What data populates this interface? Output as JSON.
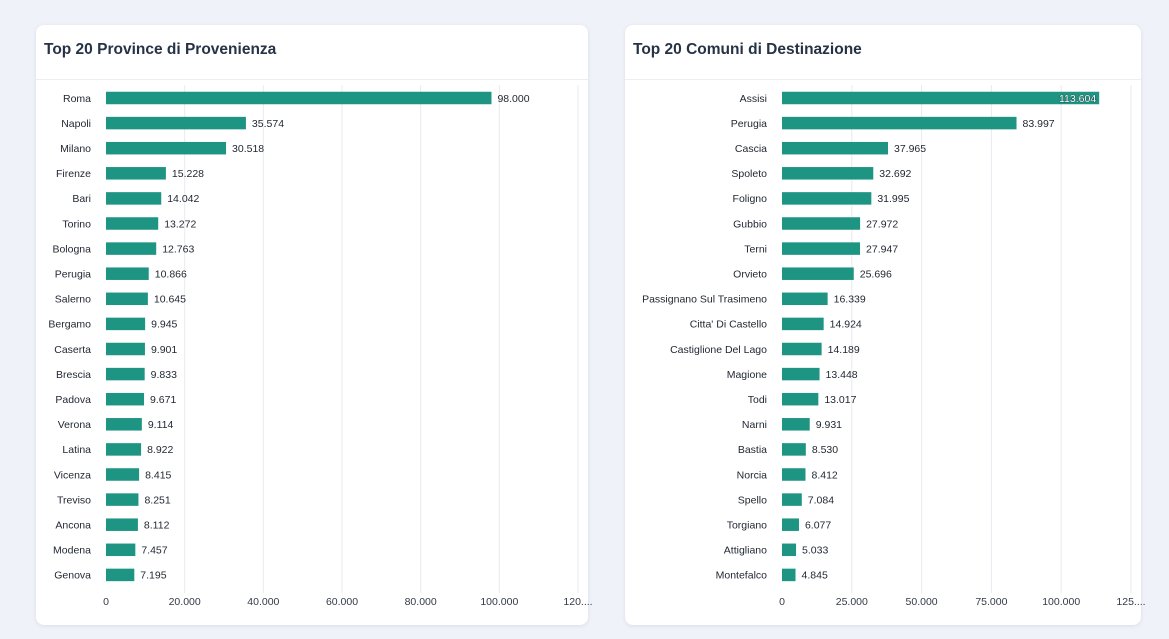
{
  "chart_data": [
    {
      "type": "bar",
      "orientation": "horizontal",
      "title": "Top 20 Province di Provenienza",
      "categories": [
        "Roma",
        "Napoli",
        "Milano",
        "Firenze",
        "Bari",
        "Torino",
        "Bologna",
        "Perugia",
        "Salerno",
        "Bergamo",
        "Caserta",
        "Brescia",
        "Padova",
        "Verona",
        "Latina",
        "Vicenza",
        "Treviso",
        "Ancona",
        "Modena",
        "Genova"
      ],
      "values": [
        98000,
        35574,
        30518,
        15228,
        14042,
        13272,
        12763,
        10866,
        10645,
        9945,
        9901,
        9833,
        9671,
        9114,
        8922,
        8415,
        8251,
        8112,
        7457,
        7195
      ],
      "value_labels": [
        "98.000",
        "35.574",
        "30.518",
        "15.228",
        "14.042",
        "13.272",
        "12.763",
        "10.866",
        "10.645",
        "9.945",
        "9.901",
        "9.833",
        "9.671",
        "9.114",
        "8.922",
        "8.415",
        "8.251",
        "8.112",
        "7.457",
        "7.195"
      ],
      "xlim": [
        0,
        120000
      ],
      "xticks": [
        0,
        20000,
        40000,
        60000,
        80000,
        100000,
        120000
      ],
      "xtick_labels": [
        "0",
        "20.000",
        "40.000",
        "60.000",
        "80.000",
        "100.000",
        "120...."
      ],
      "grid": true,
      "color": "#1e9483"
    },
    {
      "type": "bar",
      "orientation": "horizontal",
      "title": "Top 20 Comuni di Destinazione",
      "categories": [
        "Assisi",
        "Perugia",
        "Cascia",
        "Spoleto",
        "Foligno",
        "Gubbio",
        "Terni",
        "Orvieto",
        "Passignano Sul Trasimeno",
        "Citta' Di Castello",
        "Castiglione Del Lago",
        "Magione",
        "Todi",
        "Narni",
        "Bastia",
        "Norcia",
        "Spello",
        "Torgiano",
        "Attigliano",
        "Montefalco"
      ],
      "values": [
        113604,
        83997,
        37965,
        32692,
        31995,
        27972,
        27947,
        25696,
        16339,
        14924,
        14189,
        13448,
        13017,
        9931,
        8530,
        8412,
        7084,
        6077,
        5033,
        4845
      ],
      "value_labels": [
        "113.604",
        "83.997",
        "37.965",
        "32.692",
        "31.995",
        "27.972",
        "27.947",
        "25.696",
        "16.339",
        "14.924",
        "14.189",
        "13.448",
        "13.017",
        "9.931",
        "8.530",
        "8.412",
        "7.084",
        "6.077",
        "5.033",
        "4.845"
      ],
      "xlim": [
        0,
        125000
      ],
      "xticks": [
        0,
        25000,
        50000,
        75000,
        100000,
        125000
      ],
      "xtick_labels": [
        "0",
        "25.000",
        "50.000",
        "75.000",
        "100.000",
        "125...."
      ],
      "grid": true,
      "color": "#1e9483"
    }
  ]
}
